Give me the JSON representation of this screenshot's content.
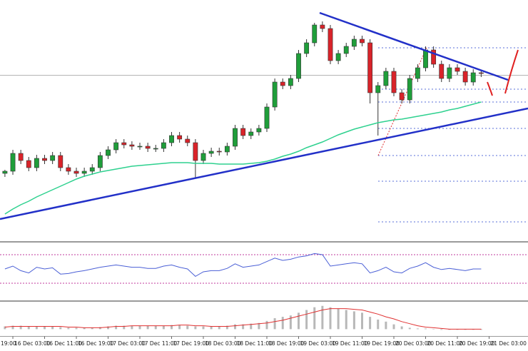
{
  "chart_data": [
    {
      "type": "candlestick",
      "up_color": "#1f9e3a",
      "down_color": "#d9232a",
      "xlim": [
        -0.62,
        65.9
      ],
      "ylim": [
        0,
        338
      ],
      "xticks": [
        {
          "value": -3,
          "label": "19:00"
        },
        {
          "value": 1,
          "label": "16 Dec 03:00"
        },
        {
          "value": 5,
          "label": "16 Dec 11:00"
        },
        {
          "value": 9,
          "label": "16 Dec 19:00"
        },
        {
          "value": 13,
          "label": "17 Dec 03:00"
        },
        {
          "value": 17,
          "label": "17 Dec 11:00"
        },
        {
          "value": 21,
          "label": "17 Dec 19:00"
        },
        {
          "value": 25,
          "label": "18 Dec 03:00"
        },
        {
          "value": 29,
          "label": "18 Dec 11:00"
        },
        {
          "value": 33,
          "label": "18 Dec 19:00"
        },
        {
          "value": 37,
          "label": "19 Dec 03:00"
        },
        {
          "value": 41,
          "label": "19 Dec 11:00"
        },
        {
          "value": 45,
          "label": "19 Dec 19:00"
        },
        {
          "value": 49,
          "label": "20 Dec 03:00"
        },
        {
          "value": 53,
          "label": "20 Dec 11:00"
        },
        {
          "value": 57,
          "label": "20 Dec 19:00"
        },
        {
          "value": 61,
          "label": "21 Dec 03:00"
        }
      ],
      "open": [
        95,
        98,
        123,
        113,
        103,
        116,
        113,
        120,
        103,
        98,
        95,
        98,
        103,
        120,
        128,
        138,
        135,
        133,
        133,
        130,
        130,
        138,
        148,
        143,
        138,
        113,
        123,
        126,
        125,
        133,
        158,
        148,
        153,
        158,
        188,
        223,
        218,
        228,
        263,
        278,
        303,
        298,
        253,
        263,
        273,
        283,
        278,
        208,
        218,
        238,
        208,
        198,
        228,
        243,
        268,
        248,
        228,
        243,
        238,
        223,
        236
      ],
      "high": [
        100,
        128,
        128,
        118,
        121,
        121,
        125,
        125,
        108,
        103,
        103,
        108,
        125,
        133,
        143,
        143,
        140,
        138,
        138,
        135,
        143,
        153,
        153,
        148,
        143,
        128,
        131,
        131,
        138,
        163,
        163,
        158,
        163,
        193,
        228,
        228,
        233,
        268,
        283,
        306,
        308,
        303,
        268,
        278,
        288,
        288,
        283,
        223,
        243,
        243,
        213,
        233,
        248,
        273,
        273,
        253,
        248,
        248,
        243,
        241,
        240
      ],
      "low": [
        90,
        93,
        108,
        98,
        98,
        108,
        108,
        98,
        93,
        90,
        90,
        93,
        98,
        115,
        123,
        130,
        128,
        128,
        125,
        125,
        125,
        133,
        138,
        133,
        88,
        108,
        118,
        120,
        120,
        128,
        143,
        143,
        148,
        153,
        183,
        213,
        213,
        223,
        258,
        273,
        293,
        248,
        248,
        258,
        268,
        273,
        193,
        148,
        213,
        203,
        193,
        193,
        223,
        238,
        243,
        223,
        223,
        233,
        218,
        218,
        230
      ],
      "close": [
        98,
        123,
        113,
        103,
        116,
        113,
        120,
        103,
        98,
        95,
        98,
        103,
        120,
        128,
        138,
        135,
        133,
        133,
        130,
        130,
        138,
        148,
        143,
        138,
        113,
        123,
        126,
        125,
        133,
        158,
        148,
        153,
        158,
        188,
        223,
        218,
        228,
        263,
        278,
        303,
        298,
        253,
        263,
        273,
        283,
        278,
        208,
        218,
        238,
        208,
        198,
        228,
        243,
        268,
        248,
        228,
        243,
        238,
        223,
        236,
        235
      ],
      "overlay": {
        "color": "#2ed18f",
        "values": [
          38,
          45,
          51,
          56,
          62,
          67,
          72,
          77,
          82,
          87,
          91,
          94,
          97,
          99,
          101,
          103,
          105,
          106,
          107,
          108,
          109,
          110,
          110,
          110,
          109,
          109,
          109,
          108,
          108,
          108,
          108,
          109,
          110,
          112,
          115,
          119,
          122,
          126,
          131,
          135,
          139,
          144,
          149,
          153,
          157,
          160,
          163,
          166,
          168,
          170,
          171,
          173,
          175,
          177,
          179,
          181,
          184,
          186,
          189,
          192,
          195
        ]
      }
    },
    {
      "type": "line",
      "ylim": [
        0,
        100
      ],
      "color": "#4a5fd6",
      "levels": [
        80,
        30
      ],
      "level_color": "#c0389c",
      "values": [
        55,
        60,
        52,
        48,
        58,
        55,
        57,
        46,
        47,
        50,
        52,
        55,
        58,
        60,
        62,
        60,
        58,
        58,
        56,
        56,
        60,
        62,
        58,
        55,
        42,
        50,
        52,
        52,
        56,
        64,
        58,
        60,
        62,
        68,
        74,
        70,
        72,
        76,
        78,
        82,
        80,
        60,
        62,
        64,
        66,
        64,
        48,
        52,
        58,
        50,
        48,
        56,
        60,
        66,
        58,
        54,
        56,
        54,
        52,
        55,
        55
      ]
    },
    {
      "type": "bar",
      "ylim": [
        -9,
        40
      ],
      "color": "#b8b8b8",
      "values": [
        4,
        5,
        5,
        4,
        4,
        4,
        4,
        3,
        2,
        2,
        2,
        2,
        3,
        4,
        5,
        5,
        5,
        5,
        5,
        5,
        5,
        6,
        6,
        5,
        4,
        4,
        4,
        4,
        5,
        7,
        7,
        8,
        9,
        12,
        16,
        18,
        20,
        24,
        28,
        32,
        34,
        32,
        30,
        28,
        26,
        24,
        18,
        14,
        11,
        7,
        4,
        2,
        1,
        1,
        0,
        -1,
        -1,
        -1,
        -1,
        -1,
        -1
      ],
      "signal": {
        "color": "#e03030",
        "values": [
          3,
          4,
          4,
          4,
          4,
          4,
          4,
          4,
          3,
          3,
          2,
          2,
          2,
          3,
          4,
          4,
          5,
          5,
          5,
          5,
          5,
          5,
          6,
          6,
          5,
          5,
          4,
          4,
          4,
          5,
          6,
          7,
          8,
          9,
          11,
          13,
          16,
          19,
          22,
          25,
          28,
          30,
          30,
          30,
          29,
          28,
          25,
          22,
          18,
          15,
          11,
          8,
          5,
          3,
          2,
          1,
          0,
          0,
          0,
          0,
          0
        ]
      }
    }
  ]
}
